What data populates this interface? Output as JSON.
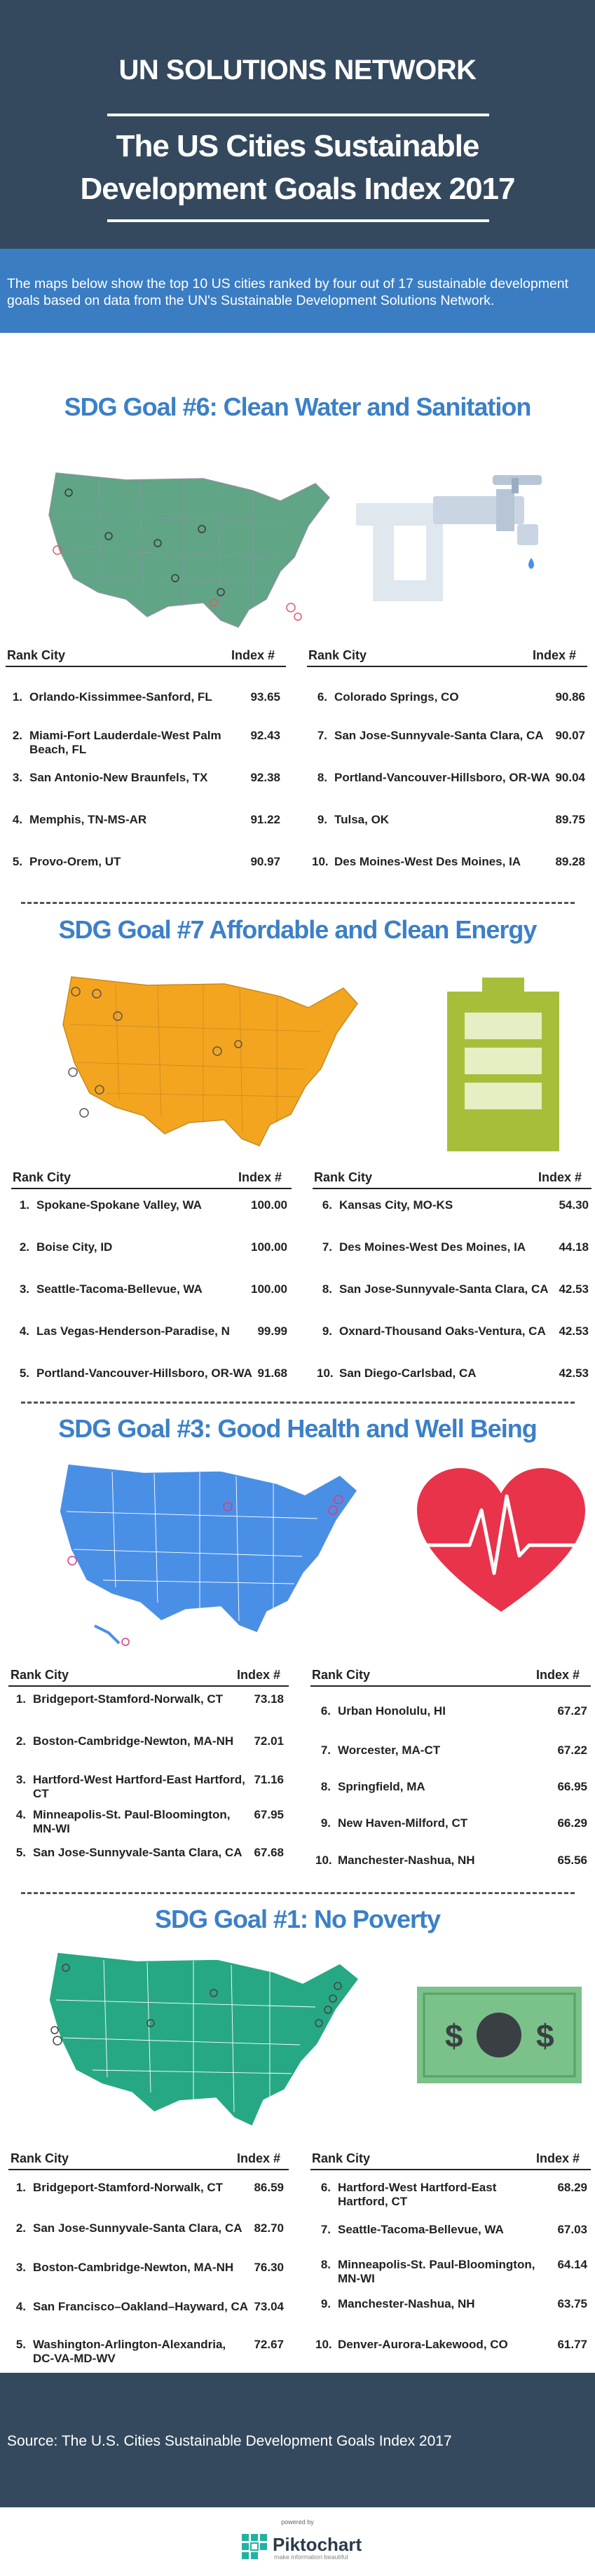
{
  "header": {
    "org": "UN SOLUTIONS NETWORK",
    "title_line1": "The US Cities Sustainable",
    "title_line2": "Development Goals Index 2017"
  },
  "intro": "The maps below show the top 10 US cities ranked by four out of 17 sustainable development goals based on data from the UN's Sustainable Development Solutions Network.",
  "columns": {
    "rank": "Rank",
    "city": "City",
    "index": "Index #"
  },
  "colors": {
    "header_bg": "#34495e",
    "intro_bg": "#3a7dc3",
    "title_blue": "#3b80c8",
    "map_green_sage": "#5fa586",
    "map_orange": "#f4a51f",
    "map_blue": "#4a8fe6",
    "map_teal": "#27a884",
    "heart_red": "#e8334a",
    "battery_green": "#a6bf3b",
    "money_green": "#7ac28a"
  },
  "sections": [
    {
      "title": "SDG Goal #6: Clean Water and Sanitation",
      "icon": "water-faucet-icon",
      "left": [
        {
          "rank": "1.",
          "city": "Orlando-Kissimmee-Sanford, FL",
          "index": "93.65"
        },
        {
          "rank": "2.",
          "city": "Miami-Fort Lauderdale-West Palm Beach, FL",
          "city_line1": "Miami-Fort Lauderdale-West Palm",
          "city_line2": "Beach, FL",
          "index": "92.43"
        },
        {
          "rank": "3.",
          "city": "San Antonio-New Braunfels, TX",
          "index": "92.38"
        },
        {
          "rank": "4.",
          "city": "Memphis, TN-MS-AR",
          "index": "91.22"
        },
        {
          "rank": "5.",
          "city": "Provo-Orem, UT",
          "index": "90.97"
        }
      ],
      "right": [
        {
          "rank": "6.",
          "city": "Colorado Springs, CO",
          "index": "90.86"
        },
        {
          "rank": "7.",
          "city": "San Jose-Sunnyvale-Santa Clara, CA",
          "index": "90.07"
        },
        {
          "rank": "8.",
          "city": "Portland-Vancouver-Hillsboro, OR-WA",
          "index": "90.04"
        },
        {
          "rank": "9.",
          "city": "Tulsa, OK",
          "index": "89.75"
        },
        {
          "rank": "10.",
          "city": "Des Moines-West Des Moines, IA",
          "index": "89.28"
        }
      ]
    },
    {
      "title": "SDG Goal #7 Affordable and Clean Energy",
      "icon": "battery-icon",
      "left": [
        {
          "rank": "1.",
          "city": "Spokane-Spokane Valley, WA",
          "index": "100.00"
        },
        {
          "rank": "2.",
          "city": "Boise City, ID",
          "index": "100.00"
        },
        {
          "rank": "3.",
          "city": "Seattle-Tacoma-Bellevue, WA",
          "index": "100.00"
        },
        {
          "rank": "4.",
          "city": "Las Vegas-Henderson-Paradise, N",
          "index": "99.99"
        },
        {
          "rank": "5.",
          "city": "Portland-Vancouver-Hillsboro, OR-WA",
          "index": "91.68"
        }
      ],
      "right": [
        {
          "rank": "6.",
          "city": "Kansas City, MO-KS",
          "index": "54.30"
        },
        {
          "rank": "7.",
          "city": "Des Moines-West Des Moines, IA",
          "index": "44.18"
        },
        {
          "rank": "8.",
          "city": "San Jose-Sunnyvale-Santa Clara, CA",
          "index": "42.53"
        },
        {
          "rank": "9.",
          "city": "Oxnard-Thousand Oaks-Ventura, CA",
          "index": "42.53"
        },
        {
          "rank": "10.",
          "city": "San Diego-Carlsbad, CA",
          "index": "42.53"
        }
      ]
    },
    {
      "title": "SDG Goal #3: Good Health and Well Being",
      "icon": "heartbeat-icon",
      "left": [
        {
          "rank": "1.",
          "city": "Bridgeport-Stamford-Norwalk, CT",
          "index": "73.18"
        },
        {
          "rank": "2.",
          "city": "Boston-Cambridge-Newton, MA-NH",
          "index": "72.01"
        },
        {
          "rank": "3.",
          "city": "Hartford-West Hartford-East Hartford, CT",
          "city_line1": "Hartford-West Hartford-East Hartford,",
          "city_line2": "CT",
          "index": "71.16"
        },
        {
          "rank": "4.",
          "city": "Minneapolis-St. Paul-Bloomington, MN-WI",
          "city_line1": "Minneapolis-St. Paul-Bloomington,",
          "city_line2": "MN-WI",
          "index": "67.95"
        },
        {
          "rank": "5.",
          "city": "San Jose-Sunnyvale-Santa Clara, CA",
          "index": "67.68"
        }
      ],
      "right": [
        {
          "rank": "6.",
          "city": "Urban Honolulu, HI",
          "index": "67.27"
        },
        {
          "rank": "7.",
          "city": "Worcester, MA-CT",
          "index": "67.22"
        },
        {
          "rank": "8.",
          "city": "Springfield, MA",
          "index": "66.95"
        },
        {
          "rank": "9.",
          "city": "New Haven-Milford, CT",
          "index": "66.29"
        },
        {
          "rank": "10.",
          "city": "Manchester-Nashua, NH",
          "index": "65.56"
        }
      ]
    },
    {
      "title": "SDG Goal #1: No Poverty",
      "icon": "dollar-bill-icon",
      "left": [
        {
          "rank": "1.",
          "city": "Bridgeport-Stamford-Norwalk, CT",
          "index": "86.59"
        },
        {
          "rank": "2.",
          "city": "San Jose-Sunnyvale-Santa Clara, CA",
          "index": "82.70"
        },
        {
          "rank": "3.",
          "city": "Boston-Cambridge-Newton, MA-NH",
          "index": "76.30"
        },
        {
          "rank": "4.",
          "city": "San Francisco–Oakland–Hayward, CA",
          "index": "73.04"
        },
        {
          "rank": "5.",
          "city": "Washington-Arlington-Alexandria, DC-VA-MD-WV",
          "city_line1": "Washington-Arlington-Alexandria,",
          "city_line2": "DC-VA-MD-WV",
          "index": "72.67"
        }
      ],
      "right": [
        {
          "rank": "6.",
          "city": "Hartford-West Hartford-East Hartford, CT",
          "city_line1": "Hartford-West Hartford-East",
          "city_line2": "Hartford, CT",
          "index": "68.29"
        },
        {
          "rank": "7.",
          "city": "Seattle-Tacoma-Bellevue, WA",
          "index": "67.03"
        },
        {
          "rank": "8.",
          "city": "Minneapolis-St. Paul-Bloomington, MN-WI",
          "city_line1": "Minneapolis-St. Paul-Bloomington,",
          "city_line2": "MN-WI",
          "index": "64.14"
        },
        {
          "rank": "9.",
          "city": "Manchester-Nashua, NH",
          "index": "63.75"
        },
        {
          "rank": "10.",
          "city": "Denver-Aurora-Lakewood, CO",
          "index": "61.77"
        }
      ]
    }
  ],
  "footer": {
    "source": "Source: The U.S. Cities Sustainable Development Goals Index 2017",
    "powered_by": "powered by",
    "brand": "Piktochart",
    "tagline": "make information beautiful"
  }
}
